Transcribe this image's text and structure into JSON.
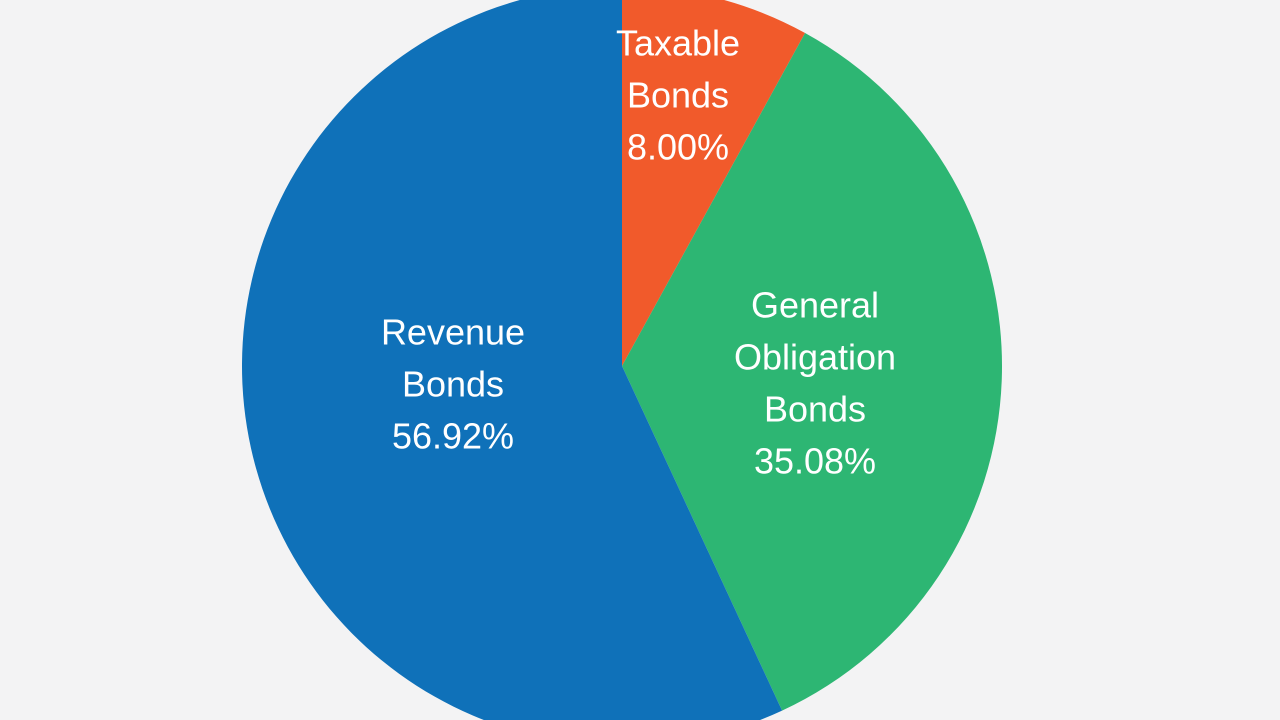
{
  "chart_data": {
    "type": "pie",
    "slices": [
      {
        "label": [
          "Taxable",
          "Bonds"
        ],
        "value": 8.0,
        "value_label": "8.00%",
        "color": "#f15a2b"
      },
      {
        "label": [
          "General",
          "Obligation",
          "Bonds"
        ],
        "value": 35.08,
        "value_label": "35.08%",
        "color": "#2db673"
      },
      {
        "label": [
          "Revenue",
          "Bonds"
        ],
        "value": 56.92,
        "value_label": "56.92%",
        "color": "#0f71b9"
      }
    ],
    "start_angle": "12 o'clock",
    "direction": "clockwise",
    "legend": "none"
  }
}
